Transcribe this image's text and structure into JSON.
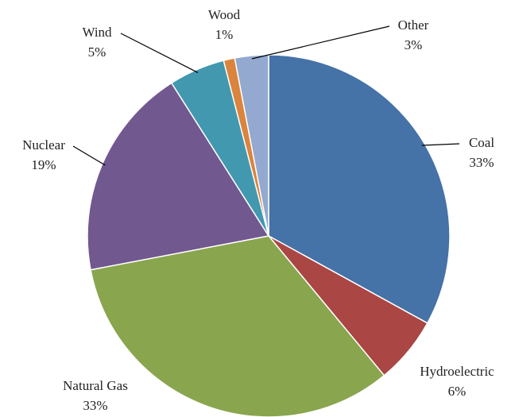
{
  "chart_data": {
    "type": "pie",
    "categories": [
      "Coal",
      "Hydroelectric",
      "Natural Gas",
      "Nuclear",
      "Wind",
      "Wood",
      "Other"
    ],
    "values": [
      33,
      6,
      33,
      19,
      5,
      1,
      3
    ],
    "value_labels": [
      "33%",
      "6%",
      "33%",
      "19%",
      "5%",
      "1%",
      "3%"
    ],
    "colors": [
      "#4572a7",
      "#aa4643",
      "#89a54e",
      "#71588f",
      "#4198af",
      "#db843d",
      "#93a9cf"
    ]
  }
}
